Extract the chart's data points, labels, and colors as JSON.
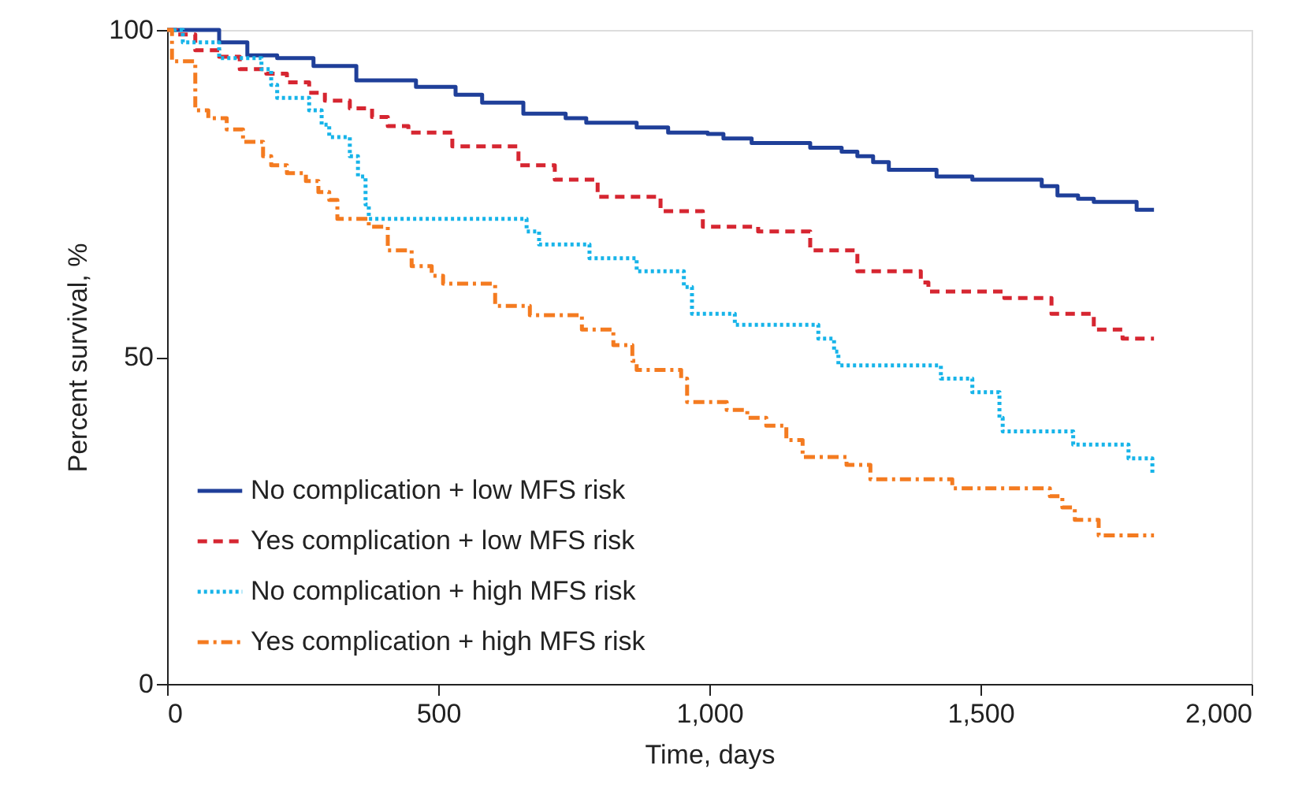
{
  "chart_data": {
    "type": "step",
    "xlabel": "Time, days",
    "ylabel": "Percent survival, %",
    "xlim": [
      0,
      2000
    ],
    "ylim": [
      0,
      100
    ],
    "xticks": [
      0,
      500,
      {
        "value": 1000,
        "label": "1,000"
      },
      {
        "value": 1500,
        "label": "1,500"
      },
      {
        "value": 2000,
        "label": "2,000"
      }
    ],
    "yticks": [
      0,
      50,
      100
    ],
    "grid": false,
    "legend": "bottom left",
    "marker": "none",
    "series": [
      {
        "name": "No complication + low MFS risk",
        "color": "#1f3f99",
        "line_style": "solid",
        "x": [
          0,
          96,
          148,
          203,
          270,
          349,
          459,
          532,
          581,
          657,
          735,
          773,
          866,
          924,
          997,
          1026,
          1078,
          1186,
          1244,
          1273,
          1302,
          1331,
          1419,
          1485,
          1613,
          1642,
          1680,
          1709,
          1788,
          1820
        ],
        "values": [
          100,
          98.1,
          96.1,
          95.7,
          94.5,
          92.3,
          91.3,
          90.1,
          88.9,
          87.2,
          86.5,
          85.8,
          85.1,
          84.3,
          84.1,
          83.4,
          82.7,
          82.0,
          81.4,
          80.7,
          79.8,
          78.6,
          77.6,
          77.1,
          76.1,
          74.7,
          74.2,
          73.7,
          72.5,
          72.5
        ]
      },
      {
        "name": "Yes complication + low MFS risk",
        "color": "#d62631",
        "line_style": "dashed",
        "x": [
          0,
          17,
          52,
          96,
          134,
          183,
          221,
          262,
          291,
          337,
          378,
          407,
          445,
          526,
          648,
          715,
          794,
          910,
          988,
          1090,
          1186,
          1273,
          1390,
          1404,
          1544,
          1631,
          1709,
          1762,
          1820
        ],
        "values": [
          100,
          99.3,
          96.9,
          95.9,
          94.0,
          93.3,
          92.0,
          90.4,
          89.2,
          88.0,
          86.7,
          85.3,
          84.3,
          82.2,
          79.3,
          77.1,
          74.5,
          72.3,
          69.9,
          69.2,
          66.3,
          63.1,
          61.4,
          60.0,
          59.0,
          56.6,
          54.2,
          52.8,
          52.8
        ]
      },
      {
        "name": "No complication + high MFS risk",
        "color": "#17b4e9",
        "line_style": "dotted",
        "x": [
          0,
          29,
          96,
          174,
          192,
          203,
          262,
          285,
          299,
          337,
          352,
          366,
          372,
          663,
          686,
          779,
          866,
          953,
          968,
          1047,
          1201,
          1230,
          1238,
          1427,
          1485,
          1535,
          1541,
          1671,
          1773,
          1817,
          1820
        ],
        "values": [
          100,
          98.1,
          95.7,
          94.0,
          91.6,
          89.6,
          87.7,
          85.5,
          83.6,
          80.7,
          77.6,
          73.3,
          71.1,
          69.2,
          67.2,
          65.1,
          63.1,
          60.7,
          56.6,
          54.9,
          52.8,
          50.8,
          48.7,
          46.7,
          44.6,
          40.7,
          38.6,
          36.6,
          34.5,
          32.3,
          32.3
        ]
      },
      {
        "name": "Yes complication + high MFS risk",
        "color": "#f47b20",
        "line_style": "dashdot",
        "x": [
          0,
          9,
          52,
          76,
          110,
          140,
          177,
          192,
          221,
          256,
          279,
          299,
          314,
          372,
          407,
          451,
          488,
          509,
          605,
          669,
          765,
          823,
          858,
          866,
          948,
          959,
          1032,
          1070,
          1105,
          1142,
          1172,
          1253,
          1297,
          1448,
          1628,
          1651,
          1674,
          1718,
          1820
        ],
        "values": [
          100,
          95.2,
          87.7,
          86.5,
          84.8,
          82.9,
          80.7,
          79.3,
          78.1,
          76.9,
          75.2,
          74.0,
          71.1,
          69.9,
          66.3,
          63.9,
          62.4,
          61.2,
          57.8,
          56.4,
          54.2,
          51.8,
          49.4,
          48.0,
          46.7,
          43.1,
          41.9,
          40.7,
          39.5,
          37.3,
          34.7,
          33.5,
          31.3,
          29.9,
          28.7,
          27.0,
          25.1,
          22.7,
          22.7
        ]
      }
    ]
  }
}
